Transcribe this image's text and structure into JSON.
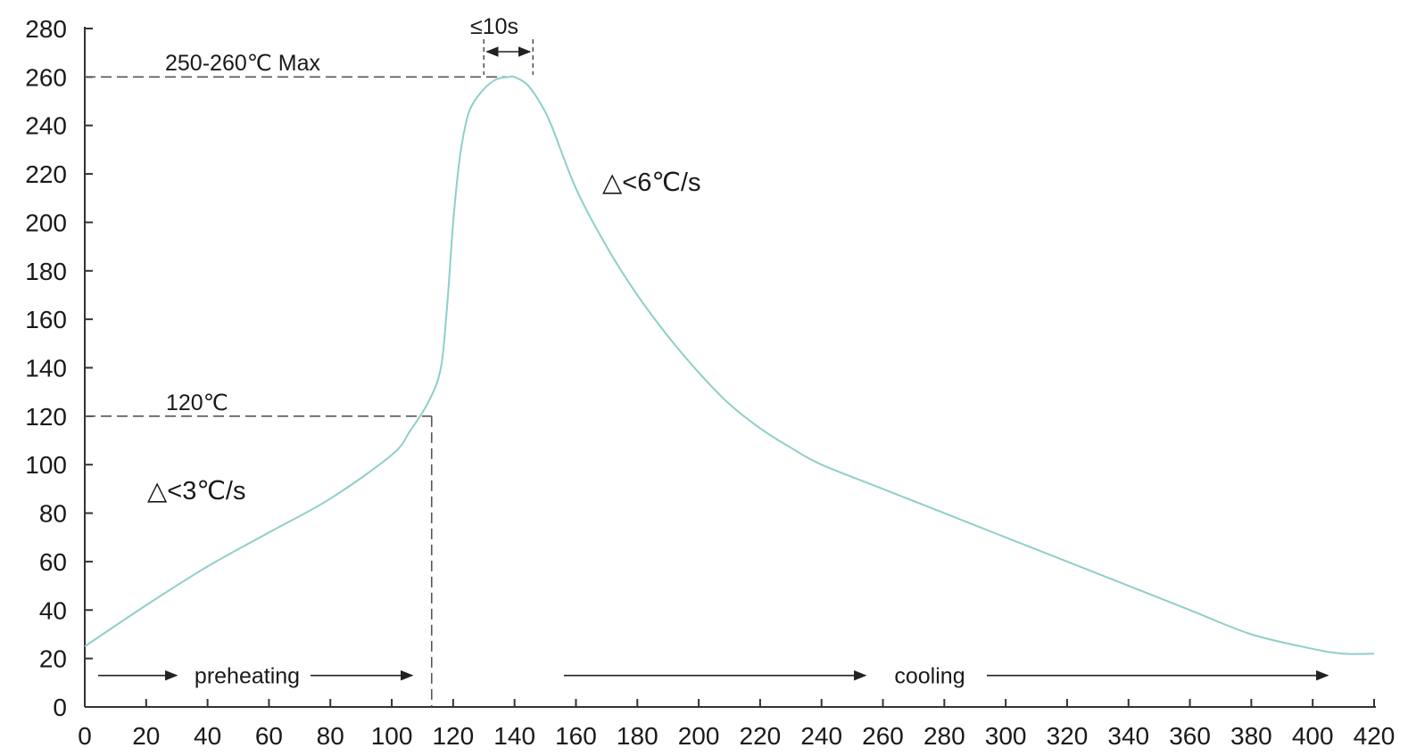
{
  "chart_data": {
    "type": "line",
    "title": "",
    "xlabel": "",
    "ylabel": "",
    "xlim": [
      0,
      420
    ],
    "ylim": [
      0,
      280
    ],
    "x_ticks": [
      "0",
      "20",
      "40",
      "60",
      "80",
      "100",
      "120",
      "140",
      "160",
      "180",
      "200",
      "220",
      "240",
      "260",
      "280",
      "300",
      "320",
      "340",
      "360",
      "380",
      "400",
      "420"
    ],
    "y_ticks": [
      "0",
      "20",
      "40",
      "60",
      "80",
      "100",
      "120",
      "140",
      "160",
      "180",
      "200",
      "220",
      "240",
      "260",
      "280"
    ],
    "grid": false,
    "legend": "none",
    "line_color": "#8ecfc9",
    "series": [
      {
        "x": [
          0,
          20,
          40,
          60,
          80,
          100,
          106,
          112,
          116,
          118,
          120,
          122,
          124,
          126,
          130,
          134,
          138,
          140,
          144,
          148,
          152,
          160,
          170,
          180,
          190,
          200,
          210,
          220,
          230,
          240,
          260,
          280,
          300,
          320,
          340,
          360,
          380,
          400,
          410,
          420
        ],
        "y": [
          25,
          42,
          58,
          72,
          86,
          104,
          114,
          126,
          140,
          165,
          200,
          225,
          240,
          248,
          255,
          259,
          260,
          260,
          257,
          250,
          240,
          214,
          190,
          170,
          153,
          138,
          125,
          115,
          107,
          100,
          90,
          80,
          70,
          60,
          50,
          40,
          30,
          24,
          22,
          22
        ]
      }
    ],
    "annotations": {
      "peak_label": "250-260℃ Max",
      "time_label": "≤10s",
      "preheat_temp_label": "120℃",
      "heating_rate_label": "△<3℃/s",
      "cooling_rate_label": "△<6℃/s",
      "preheating_label": "preheating",
      "cooling_label": "cooling"
    }
  }
}
